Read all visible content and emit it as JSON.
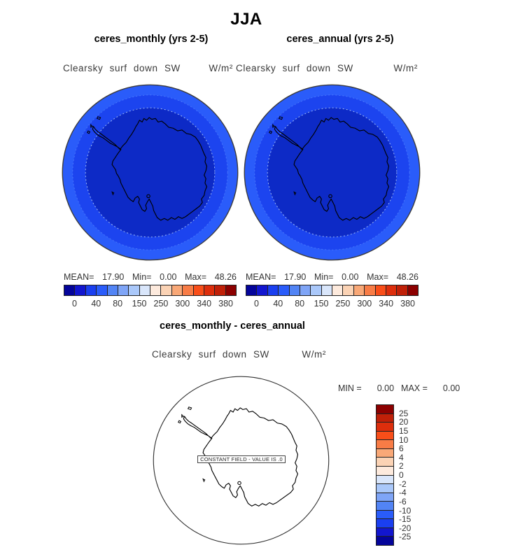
{
  "title": "JJA",
  "panels": [
    {
      "subtitle": "ceres_monthly (yrs 2-5)",
      "field_label": "Clearsky surf down SW",
      "units": "W/m²",
      "stats": {
        "mean_label": "MEAN=",
        "mean": "17.90",
        "min_label": "Min=",
        "min": "0.00",
        "max_label": "Max=",
        "max": "48.26"
      },
      "colorbar_labels": [
        "0",
        "40",
        "80",
        "150",
        "250",
        "300",
        "340",
        "380"
      ]
    },
    {
      "subtitle": "ceres_annual (yrs 2-5)",
      "field_label": "Clearsky surf down SW",
      "units": "W/m²",
      "stats": {
        "mean_label": "MEAN=",
        "mean": "17.90",
        "min_label": "Min=",
        "min": "0.00",
        "max_label": "Max=",
        "max": "48.26"
      },
      "colorbar_labels": [
        "0",
        "40",
        "80",
        "150",
        "250",
        "300",
        "340",
        "380"
      ]
    }
  ],
  "diff": {
    "title": "ceres_monthly - ceres_annual",
    "field_label": "Clearsky surf down SW",
    "units": "W/m²",
    "min_label": "MIN =",
    "min": "0.00",
    "max_label": "MAX =",
    "max": "0.00",
    "constant_note": "CONSTANT FIELD - VALUE IS .0",
    "colorbar_labels": [
      "25",
      "20",
      "15",
      "10",
      "6",
      "4",
      "2",
      "0",
      "-2",
      "-4",
      "-6",
      "-10",
      "-15",
      "-20",
      "-25"
    ]
  },
  "colors": {
    "palette": [
      "#04049a",
      "#1216cf",
      "#1a3ff0",
      "#2a5cfa",
      "#5284f5",
      "#7fa5f7",
      "#aac8fa",
      "#d9e6fb",
      "#fdeadd",
      "#fbd3b5",
      "#f9a877",
      "#f87c46",
      "#f94e19",
      "#dd2e0c",
      "#c02008",
      "#8c0000"
    ],
    "map_outer": "#2a5cfa",
    "map_middle": "#1c44ef",
    "map_inner": "#0d2ac6",
    "contour_light": "#9db9f2",
    "contour_mid": "#4d79fa",
    "map_outline": "#3c3c3c"
  },
  "chart_data": [
    {
      "type": "heatmap",
      "projection": "antarctic polar stereographic",
      "season": "JJA",
      "title": "ceres_monthly (yrs 2-5)",
      "variable": "Clearsky surf down SW",
      "units": "W/m²",
      "stats": {
        "mean": 17.9,
        "min": 0.0,
        "max": 48.26
      },
      "colorbar_tick_labels": [
        0,
        40,
        80,
        150,
        250,
        300,
        340,
        380
      ],
      "rings": [
        {
          "region": "inner disc (pole, polar night)",
          "value_range": [
            0,
            20
          ],
          "color": "#0d2ac6"
        },
        {
          "region": "middle ring",
          "value_range": [
            20,
            40
          ],
          "color": "#1c44ef"
        },
        {
          "region": "outer ring (map edge)",
          "value_range": [
            40,
            48.26
          ],
          "color": "#2a5cfa"
        }
      ],
      "legend_position": "below",
      "grid": false
    },
    {
      "type": "heatmap",
      "projection": "antarctic polar stereographic",
      "season": "JJA",
      "title": "ceres_annual (yrs 2-5)",
      "variable": "Clearsky surf down SW",
      "units": "W/m²",
      "stats": {
        "mean": 17.9,
        "min": 0.0,
        "max": 48.26
      },
      "colorbar_tick_labels": [
        0,
        40,
        80,
        150,
        250,
        300,
        340,
        380
      ],
      "rings": [
        {
          "region": "inner disc (pole, polar night)",
          "value_range": [
            0,
            20
          ],
          "color": "#0d2ac6"
        },
        {
          "region": "middle ring",
          "value_range": [
            20,
            40
          ],
          "color": "#1c44ef"
        },
        {
          "region": "outer ring (map edge)",
          "value_range": [
            40,
            48.26
          ],
          "color": "#2a5cfa"
        }
      ],
      "legend_position": "below",
      "grid": false
    },
    {
      "type": "heatmap",
      "projection": "antarctic polar stereographic",
      "season": "JJA",
      "title": "ceres_monthly - ceres_annual",
      "variable": "Clearsky surf down SW",
      "units": "W/m²",
      "stats": {
        "min": 0.0,
        "max": 0.0
      },
      "field": "constant 0 everywhere (blank map)",
      "annotation": "CONSTANT FIELD - VALUE IS .0",
      "colorbar_tick_labels": [
        25,
        20,
        15,
        10,
        6,
        4,
        2,
        0,
        -2,
        -4,
        -6,
        -10,
        -15,
        -20,
        -25
      ],
      "legend_position": "right",
      "grid": false
    }
  ]
}
